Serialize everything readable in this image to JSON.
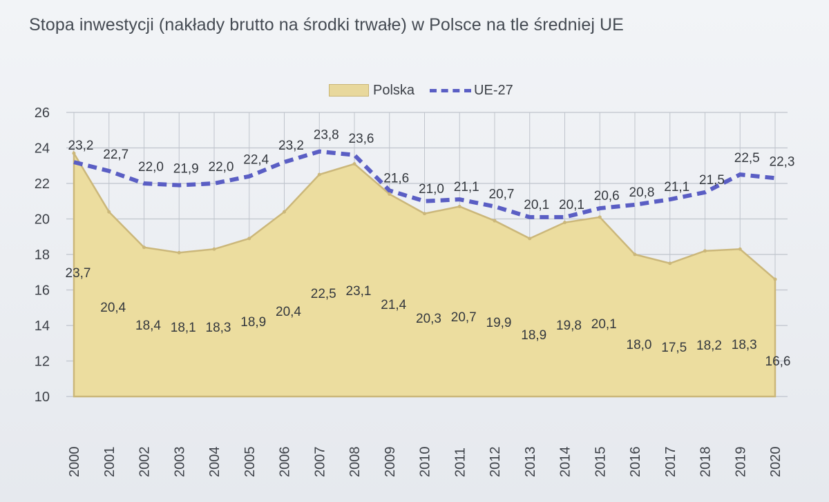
{
  "title": "Stopa inwestycji (nakłady brutto na środki trwałe) w Polsce na tle średniej UE",
  "colors": {
    "polska_fill": "#ecdd9f",
    "polska_stroke": "#cbb77a",
    "ue_line": "#5a5ec4",
    "grid": "#bfc4cc"
  },
  "chart_data": {
    "type": "area",
    "title": "Stopa inwestycji (nakłady brutto na środki trwałe) w Polsce na tle średniej UE",
    "xlabel": "",
    "ylabel": "",
    "ylim": [
      10,
      26
    ],
    "yticks": [
      "10",
      "12",
      "14",
      "16",
      "18",
      "20",
      "22",
      "24",
      "26"
    ],
    "grid": true,
    "legend_position": "top-center",
    "categories": [
      "2000",
      "2001",
      "2002",
      "2003",
      "2004",
      "2005",
      "2006",
      "2007",
      "2008",
      "2009",
      "2010",
      "2011",
      "2012",
      "2013",
      "2014",
      "2015",
      "2016",
      "2017",
      "2018",
      "2019",
      "2020"
    ],
    "series": [
      {
        "name": "Polska",
        "style": "area",
        "values": [
          23.7,
          20.4,
          18.4,
          18.1,
          18.3,
          18.9,
          20.4,
          22.5,
          23.1,
          21.4,
          20.3,
          20.7,
          19.9,
          18.9,
          19.8,
          20.1,
          18.0,
          17.5,
          18.2,
          18.3,
          16.6
        ],
        "labels": [
          "23,7",
          "20,4",
          "18,4",
          "18,1",
          "18,3",
          "18,9",
          "20,4",
          "22,5",
          "23,1",
          "21,4",
          "20,3",
          "20,7",
          "19,9",
          "18,9",
          "19,8",
          "20,1",
          "18,0",
          "17,5",
          "18,2",
          "18,3",
          "16,6"
        ]
      },
      {
        "name": "UE-27",
        "style": "dashed-line",
        "values": [
          23.2,
          22.7,
          22.0,
          21.9,
          22.0,
          22.4,
          23.2,
          23.8,
          23.6,
          21.6,
          21.0,
          21.1,
          20.7,
          20.1,
          20.1,
          20.6,
          20.8,
          21.1,
          21.5,
          22.5,
          22.3
        ],
        "labels": [
          "23,2",
          "22,7",
          "22,0",
          "21,9",
          "22,0",
          "22,4",
          "23,2",
          "23,8",
          "23,6",
          "21,6",
          "21,0",
          "21,1",
          "20,7",
          "20,1",
          "20,1",
          "20,6",
          "20,8",
          "21,1",
          "21,5",
          "22,5",
          "22,3"
        ]
      }
    ]
  }
}
